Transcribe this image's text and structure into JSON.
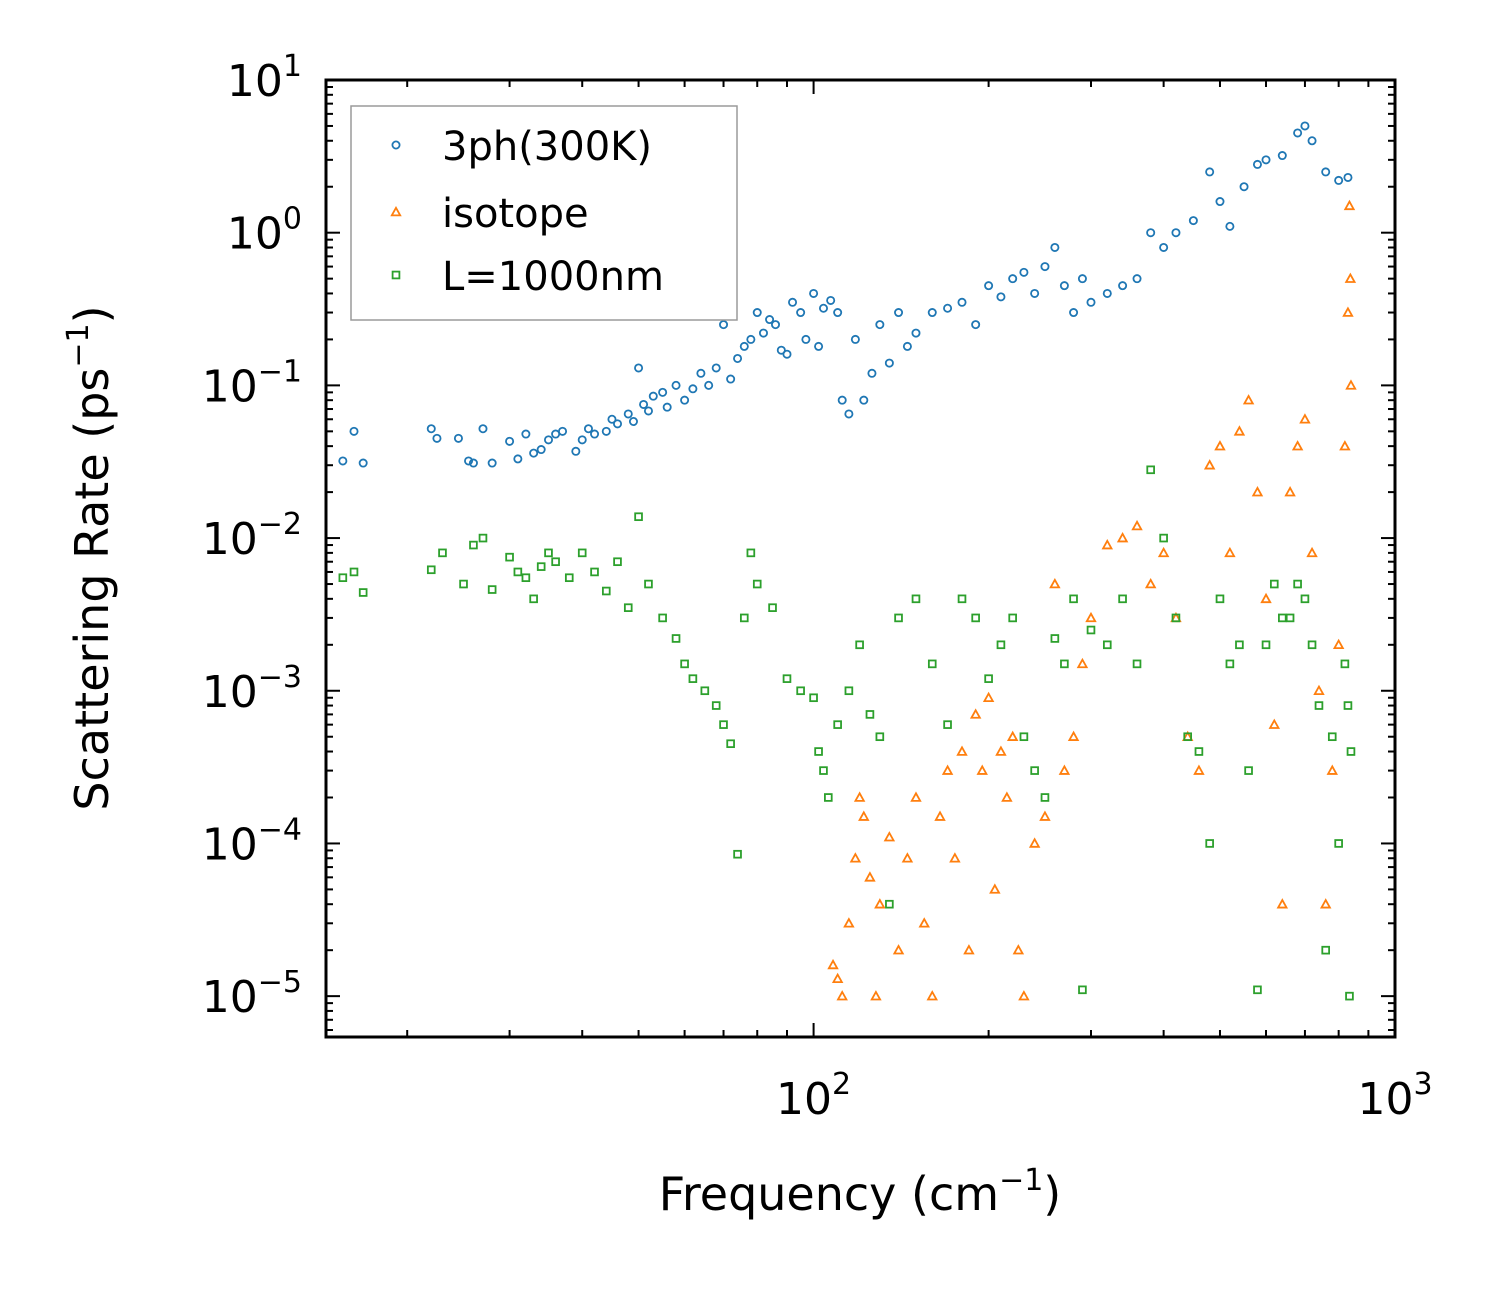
{
  "chart_data": {
    "type": "scatter",
    "title": "",
    "xlabel": "Frequency (cm",
    "xlabel_sup": "−1",
    "xlabel_end": ")",
    "ylabel": "Scattering Rate (ps",
    "ylabel_sup": "−1",
    "ylabel_end": ")",
    "x_scale": "log",
    "y_scale": "log",
    "xlim": [
      14.5,
      1000
    ],
    "ylim": [
      5.4e-06,
      10
    ],
    "x_ticks": [
      {
        "base": "10",
        "exp": "2",
        "value": 100
      },
      {
        "base": "10",
        "exp": "3",
        "value": 1000
      }
    ],
    "y_ticks": [
      {
        "base": "10",
        "exp": "1",
        "value": 10
      },
      {
        "base": "10",
        "exp": "0",
        "value": 1
      },
      {
        "base": "10",
        "exp": "−1",
        "value": 0.1
      },
      {
        "base": "10",
        "exp": "−2",
        "value": 0.01
      },
      {
        "base": "10",
        "exp": "−3",
        "value": 0.001
      },
      {
        "base": "10",
        "exp": "−4",
        "value": 0.0001
      },
      {
        "base": "10",
        "exp": "−5",
        "value": 1e-05
      }
    ],
    "grid": false,
    "legend_position": "top-left",
    "series": [
      {
        "name": "3ph(300K)",
        "marker": "circle",
        "color": "#1f77b4",
        "points": [
          [
            15.5,
            0.032
          ],
          [
            16.2,
            0.05
          ],
          [
            16.8,
            0.031
          ],
          [
            22,
            0.052
          ],
          [
            22.5,
            0.045
          ],
          [
            24.5,
            0.045
          ],
          [
            25.5,
            0.032
          ],
          [
            26,
            0.031
          ],
          [
            27,
            0.052
          ],
          [
            28,
            0.031
          ],
          [
            30,
            0.043
          ],
          [
            31,
            0.033
          ],
          [
            32,
            0.048
          ],
          [
            33,
            0.036
          ],
          [
            34,
            0.038
          ],
          [
            35,
            0.044
          ],
          [
            36,
            0.048
          ],
          [
            37,
            0.05
          ],
          [
            39,
            0.037
          ],
          [
            40,
            0.044
          ],
          [
            41,
            0.052
          ],
          [
            42,
            0.048
          ],
          [
            44,
            0.05
          ],
          [
            45,
            0.06
          ],
          [
            46,
            0.056
          ],
          [
            48,
            0.065
          ],
          [
            49,
            0.058
          ],
          [
            50,
            0.13
          ],
          [
            51,
            0.075
          ],
          [
            52,
            0.068
          ],
          [
            53,
            0.085
          ],
          [
            55,
            0.09
          ],
          [
            56,
            0.072
          ],
          [
            58,
            0.1
          ],
          [
            60,
            0.08
          ],
          [
            62,
            0.095
          ],
          [
            64,
            0.12
          ],
          [
            66,
            0.1
          ],
          [
            68,
            0.13
          ],
          [
            70,
            0.25
          ],
          [
            72,
            0.11
          ],
          [
            74,
            0.15
          ],
          [
            76,
            0.18
          ],
          [
            78,
            0.2
          ],
          [
            80,
            0.3
          ],
          [
            82,
            0.22
          ],
          [
            84,
            0.27
          ],
          [
            86,
            0.25
          ],
          [
            88,
            0.17
          ],
          [
            90,
            0.16
          ],
          [
            92,
            0.35
          ],
          [
            95,
            0.3
          ],
          [
            97,
            0.2
          ],
          [
            100,
            0.4
          ],
          [
            102,
            0.18
          ],
          [
            104,
            0.32
          ],
          [
            107,
            0.36
          ],
          [
            110,
            0.3
          ],
          [
            112,
            0.08
          ],
          [
            115,
            0.065
          ],
          [
            118,
            0.2
          ],
          [
            122,
            0.08
          ],
          [
            126,
            0.12
          ],
          [
            130,
            0.25
          ],
          [
            135,
            0.14
          ],
          [
            140,
            0.3
          ],
          [
            145,
            0.18
          ],
          [
            150,
            0.22
          ],
          [
            160,
            0.3
          ],
          [
            170,
            0.32
          ],
          [
            180,
            0.35
          ],
          [
            190,
            0.25
          ],
          [
            200,
            0.45
          ],
          [
            210,
            0.38
          ],
          [
            220,
            0.5
          ],
          [
            230,
            0.55
          ],
          [
            240,
            0.4
          ],
          [
            250,
            0.6
          ],
          [
            260,
            0.8
          ],
          [
            270,
            0.45
          ],
          [
            280,
            0.3
          ],
          [
            290,
            0.5
          ],
          [
            300,
            0.35
          ],
          [
            320,
            0.4
          ],
          [
            340,
            0.45
          ],
          [
            360,
            0.5
          ],
          [
            380,
            1.0
          ],
          [
            400,
            0.8
          ],
          [
            420,
            1.0
          ],
          [
            450,
            1.2
          ],
          [
            480,
            2.5
          ],
          [
            500,
            1.6
          ],
          [
            520,
            1.1
          ],
          [
            550,
            2.0
          ],
          [
            580,
            2.8
          ],
          [
            600,
            3.0
          ],
          [
            640,
            3.2
          ],
          [
            680,
            4.5
          ],
          [
            700,
            5.0
          ],
          [
            720,
            4.0
          ],
          [
            760,
            2.5
          ],
          [
            800,
            2.2
          ],
          [
            830,
            2.3
          ]
        ]
      },
      {
        "name": "isotope",
        "marker": "triangle",
        "color": "#ff7f0e",
        "points": [
          [
            108,
            1.6e-05
          ],
          [
            110,
            1.3e-05
          ],
          [
            112,
            1e-05
          ],
          [
            115,
            3e-05
          ],
          [
            118,
            8e-05
          ],
          [
            120,
            0.0002
          ],
          [
            122,
            0.00015
          ],
          [
            125,
            6e-05
          ],
          [
            128,
            1e-05
          ],
          [
            130,
            4e-05
          ],
          [
            135,
            0.00011
          ],
          [
            140,
            2e-05
          ],
          [
            145,
            8e-05
          ],
          [
            150,
            0.0002
          ],
          [
            155,
            3e-05
          ],
          [
            160,
            1e-05
          ],
          [
            165,
            0.00015
          ],
          [
            170,
            0.0003
          ],
          [
            175,
            8e-05
          ],
          [
            180,
            0.0004
          ],
          [
            185,
            2e-05
          ],
          [
            190,
            0.0007
          ],
          [
            195,
            0.0003
          ],
          [
            200,
            0.0009
          ],
          [
            205,
            5e-05
          ],
          [
            210,
            0.0004
          ],
          [
            215,
            0.0002
          ],
          [
            220,
            0.0005
          ],
          [
            225,
            2e-05
          ],
          [
            230,
            1e-05
          ],
          [
            240,
            0.0001
          ],
          [
            250,
            0.00015
          ],
          [
            260,
            0.005
          ],
          [
            270,
            0.0003
          ],
          [
            280,
            0.0005
          ],
          [
            290,
            0.0015
          ],
          [
            300,
            0.003
          ],
          [
            320,
            0.009
          ],
          [
            340,
            0.01
          ],
          [
            360,
            0.012
          ],
          [
            380,
            0.005
          ],
          [
            400,
            0.008
          ],
          [
            420,
            0.003
          ],
          [
            440,
            0.0005
          ],
          [
            460,
            0.0003
          ],
          [
            480,
            0.03
          ],
          [
            500,
            0.04
          ],
          [
            520,
            0.008
          ],
          [
            540,
            0.05
          ],
          [
            560,
            0.08
          ],
          [
            580,
            0.02
          ],
          [
            600,
            0.004
          ],
          [
            620,
            0.0006
          ],
          [
            640,
            4e-05
          ],
          [
            660,
            0.02
          ],
          [
            680,
            0.04
          ],
          [
            700,
            0.06
          ],
          [
            720,
            0.008
          ],
          [
            740,
            0.001
          ],
          [
            760,
            4e-05
          ],
          [
            780,
            0.0003
          ],
          [
            800,
            0.002
          ],
          [
            820,
            0.04
          ],
          [
            830,
            0.3
          ],
          [
            835,
            1.5
          ],
          [
            838,
            0.5
          ],
          [
            840,
            0.1
          ]
        ]
      },
      {
        "name": "L=1000nm",
        "marker": "square",
        "color": "#2ca02c",
        "points": [
          [
            15.5,
            0.0055
          ],
          [
            16.2,
            0.006
          ],
          [
            16.8,
            0.0044
          ],
          [
            22,
            0.0062
          ],
          [
            23,
            0.008
          ],
          [
            25,
            0.005
          ],
          [
            26,
            0.009
          ],
          [
            27,
            0.01
          ],
          [
            28,
            0.0046
          ],
          [
            30,
            0.0075
          ],
          [
            31,
            0.006
          ],
          [
            32,
            0.0055
          ],
          [
            33,
            0.004
          ],
          [
            34,
            0.0065
          ],
          [
            35,
            0.008
          ],
          [
            36,
            0.007
          ],
          [
            38,
            0.0055
          ],
          [
            40,
            0.008
          ],
          [
            42,
            0.006
          ],
          [
            44,
            0.0045
          ],
          [
            46,
            0.007
          ],
          [
            48,
            0.0035
          ],
          [
            50,
            0.0138
          ],
          [
            52,
            0.005
          ],
          [
            55,
            0.003
          ],
          [
            58,
            0.0022
          ],
          [
            60,
            0.0015
          ],
          [
            62,
            0.0012
          ],
          [
            65,
            0.001
          ],
          [
            68,
            0.0008
          ],
          [
            70,
            0.0006
          ],
          [
            72,
            0.00045
          ],
          [
            74,
            8.5e-05
          ],
          [
            76,
            0.003
          ],
          [
            78,
            0.008
          ],
          [
            80,
            0.005
          ],
          [
            85,
            0.0035
          ],
          [
            90,
            0.0012
          ],
          [
            95,
            0.001
          ],
          [
            100,
            0.0009
          ],
          [
            102,
            0.0004
          ],
          [
            104,
            0.0003
          ],
          [
            106,
            0.0002
          ],
          [
            110,
            0.0006
          ],
          [
            115,
            0.001
          ],
          [
            120,
            0.002
          ],
          [
            125,
            0.0007
          ],
          [
            130,
            0.0005
          ],
          [
            135,
            4e-05
          ],
          [
            140,
            0.003
          ],
          [
            150,
            0.004
          ],
          [
            160,
            0.0015
          ],
          [
            170,
            0.0006
          ],
          [
            180,
            0.004
          ],
          [
            190,
            0.003
          ],
          [
            200,
            0.0012
          ],
          [
            210,
            0.002
          ],
          [
            220,
            0.003
          ],
          [
            230,
            0.0005
          ],
          [
            240,
            0.0003
          ],
          [
            250,
            0.0002
          ],
          [
            260,
            0.0022
          ],
          [
            270,
            0.0015
          ],
          [
            280,
            0.004
          ],
          [
            290,
            1.1e-05
          ],
          [
            300,
            0.0025
          ],
          [
            320,
            0.002
          ],
          [
            340,
            0.004
          ],
          [
            360,
            0.0015
          ],
          [
            380,
            0.028
          ],
          [
            400,
            0.01
          ],
          [
            420,
            0.003
          ],
          [
            440,
            0.0005
          ],
          [
            460,
            0.0004
          ],
          [
            480,
            0.0001
          ],
          [
            500,
            0.004
          ],
          [
            520,
            0.0015
          ],
          [
            540,
            0.002
          ],
          [
            560,
            0.0003
          ],
          [
            580,
            1.1e-05
          ],
          [
            600,
            0.002
          ],
          [
            620,
            0.005
          ],
          [
            640,
            0.003
          ],
          [
            660,
            0.003
          ],
          [
            680,
            0.005
          ],
          [
            700,
            0.004
          ],
          [
            720,
            0.002
          ],
          [
            740,
            0.0008
          ],
          [
            760,
            2e-05
          ],
          [
            780,
            0.0005
          ],
          [
            800,
            0.0001
          ],
          [
            820,
            0.0015
          ],
          [
            830,
            0.0008
          ],
          [
            835,
            1e-05
          ],
          [
            840,
            0.0004
          ]
        ]
      }
    ]
  }
}
